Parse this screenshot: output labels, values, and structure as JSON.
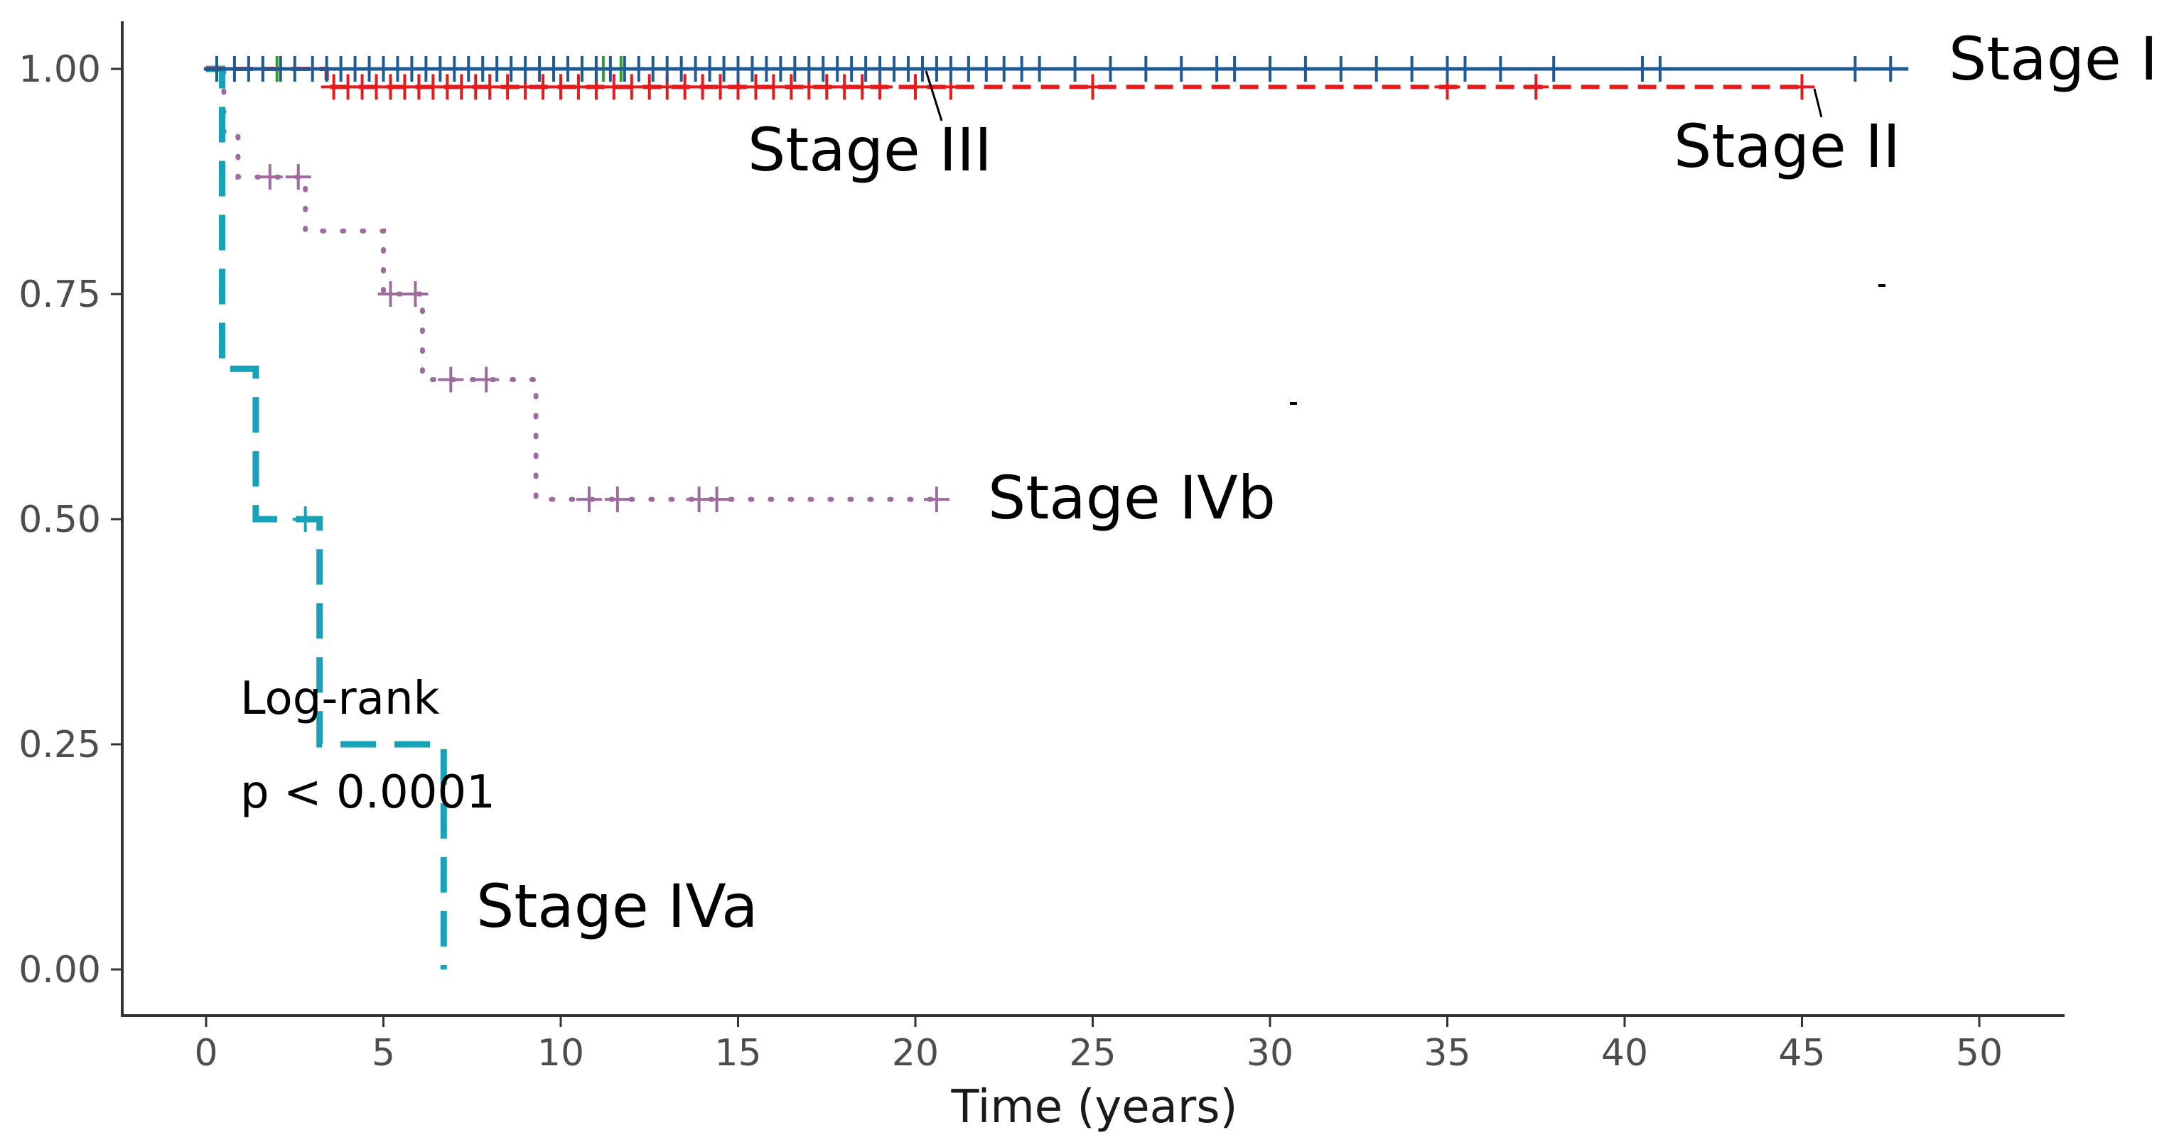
{
  "chart_data": {
    "type": "line",
    "subtype": "kaplan-meier step survival curves",
    "title": "",
    "xlabel": "Time (years)",
    "ylabel": "",
    "xlim": [
      -2.5,
      52.5
    ],
    "ylim": [
      -0.05,
      1.05
    ],
    "x_ticks": [
      0,
      5,
      10,
      15,
      20,
      25,
      30,
      35,
      40,
      45,
      50
    ],
    "y_ticks": [
      0,
      0.25,
      0.5,
      0.75,
      1
    ],
    "x_tick_labels": [
      "0",
      "5",
      "10",
      "15",
      "20",
      "25",
      "30",
      "35",
      "40",
      "45",
      "50"
    ],
    "y_tick_labels": [
      "0.00",
      "0.25",
      "0.50",
      "0.75",
      "1.00"
    ],
    "grid": false,
    "legend": "none (curves labelled directly)",
    "annotation": {
      "line1": "Log-rank",
      "line2": "p < 0.0001"
    },
    "series": [
      {
        "name": "Stage I",
        "color": "#1f5a96",
        "dash": "solid",
        "label": "Stage I",
        "steps": [
          [
            0,
            1.0
          ],
          [
            48,
            1.0
          ]
        ],
        "censor_y": 1.0,
        "censor_x": [
          0.3,
          0.8,
          1.2,
          1.6,
          2.1,
          2.5,
          3,
          3.4,
          3.8,
          4.2,
          4.6,
          5,
          5.4,
          5.8,
          6.2,
          6.6,
          7,
          7.4,
          7.8,
          8.2,
          8.6,
          9,
          9.4,
          9.8,
          10.2,
          10.6,
          11,
          11.4,
          11.8,
          12.2,
          12.6,
          13,
          13.4,
          13.8,
          14.2,
          14.6,
          15,
          15.4,
          15.8,
          16.2,
          16.6,
          17,
          17.4,
          17.8,
          18.2,
          18.6,
          19,
          19.4,
          19.8,
          20.2,
          20.6,
          21,
          21.5,
          22,
          22.5,
          23,
          23.5,
          24.5,
          25.5,
          26.5,
          27.5,
          28.5,
          29,
          30,
          31,
          32,
          33,
          34,
          35,
          35.5,
          36.5,
          38,
          40.5,
          41,
          46.5,
          47.5
        ]
      },
      {
        "name": "Stage II",
        "color": "#e41a1c",
        "dash": "dashed",
        "label": "Stage II",
        "steps": [
          [
            0,
            1.0
          ],
          [
            3.4,
            1.0
          ],
          [
            3.4,
            0.98
          ],
          [
            45,
            0.98
          ]
        ],
        "censor_y": 0.98,
        "censor_x": [
          3.6,
          4,
          4.4,
          4.8,
          5.2,
          5.6,
          6,
          6.4,
          6.8,
          7.2,
          7.6,
          8,
          8.5,
          9,
          9.5,
          10,
          10.5,
          11,
          11.5,
          12,
          12.5,
          13,
          13.5,
          14,
          14.5,
          15,
          15.5,
          16,
          16.5,
          17,
          17.5,
          18,
          18.5,
          19,
          20,
          21,
          25,
          35,
          37.5,
          45
        ]
      },
      {
        "name": "Stage III",
        "color": "#2ca02c",
        "dash": "solid",
        "label": "Stage III",
        "steps": [
          [
            0,
            1.0
          ],
          [
            20.2,
            1.0
          ]
        ],
        "censor_y": 1.0,
        "censor_x": [
          1.6,
          2,
          11.2,
          11.7,
          20.2
        ]
      },
      {
        "name": "Stage IVa",
        "color": "#17a2b8",
        "dash": "longdash",
        "label": "Stage IVa",
        "steps": [
          [
            0,
            1.0
          ],
          [
            0.45,
            1.0
          ],
          [
            0.45,
            0.667
          ],
          [
            1.4,
            0.667
          ],
          [
            1.4,
            0.5
          ],
          [
            3.2,
            0.5
          ],
          [
            3.2,
            0.25
          ],
          [
            6.7,
            0.25
          ],
          [
            6.7,
            0.0
          ]
        ],
        "censor_y": 0.5,
        "censor_x": [
          2.8
        ]
      },
      {
        "name": "Stage IVb",
        "color": "#9e6b9e",
        "dash": "dotted",
        "label": "Stage IVb",
        "steps": [
          [
            0,
            1.0
          ],
          [
            0.5,
            1.0
          ],
          [
            0.5,
            0.93
          ],
          [
            0.9,
            0.93
          ],
          [
            0.9,
            0.88
          ],
          [
            2.8,
            0.88
          ],
          [
            2.8,
            0.82
          ],
          [
            5.0,
            0.82
          ],
          [
            5.0,
            0.75
          ],
          [
            6.1,
            0.75
          ],
          [
            6.1,
            0.655
          ],
          [
            9.3,
            0.655
          ],
          [
            9.3,
            0.522
          ],
          [
            20.5,
            0.522
          ]
        ],
        "censor_groups": [
          {
            "y": 0.88,
            "x": [
              1.8,
              2.6
            ]
          },
          {
            "y": 0.75,
            "x": [
              5.2,
              5.9
            ]
          },
          {
            "y": 0.655,
            "x": [
              6.9,
              7.9
            ]
          },
          {
            "y": 0.522,
            "x": [
              10.8,
              11.6,
              13.9,
              14.4,
              20.6
            ]
          }
        ]
      }
    ]
  }
}
